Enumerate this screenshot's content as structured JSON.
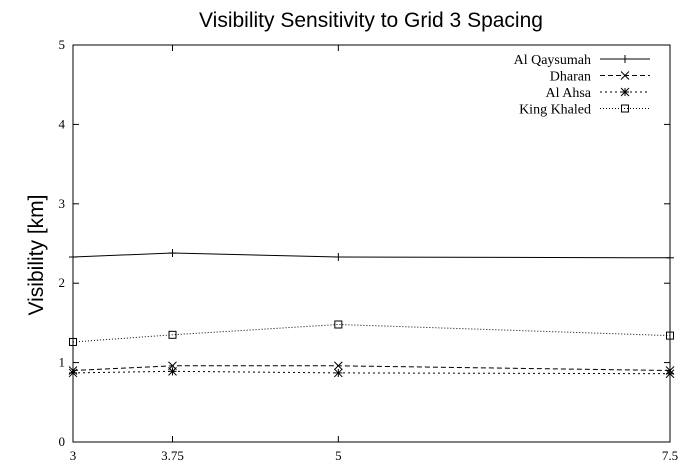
{
  "chart_data": {
    "type": "line",
    "title": "Visibility Sensitivity to Grid 3 Spacing",
    "xlabel": "",
    "ylabel": "Visibility [km]",
    "x": [
      3,
      3.75,
      5,
      7.5
    ],
    "x_tick_labels": [
      "3",
      "3.75",
      "5",
      "7.5"
    ],
    "y_ticks": [
      0,
      1,
      2,
      3,
      4,
      5
    ],
    "y_tick_labels": [
      "0",
      "1",
      "2",
      "3",
      "4",
      "5"
    ],
    "xlim": [
      3,
      7.5
    ],
    "ylim": [
      0,
      5
    ],
    "grid": false,
    "legend_position": "top-right",
    "series": [
      {
        "name": "Al Qaysumah",
        "marker": "plus",
        "dash": "solid",
        "values": [
          2.33,
          2.38,
          2.33,
          2.32
        ]
      },
      {
        "name": "Dharan",
        "marker": "cross",
        "dash": "dashed",
        "values": [
          0.9,
          0.96,
          0.96,
          0.9
        ]
      },
      {
        "name": "Al Ahsa",
        "marker": "star",
        "dash": "short-dashed",
        "values": [
          0.87,
          0.89,
          0.87,
          0.86
        ]
      },
      {
        "name": "King Khaled",
        "marker": "square",
        "dash": "dotted",
        "values": [
          1.26,
          1.35,
          1.48,
          1.34
        ]
      }
    ]
  }
}
